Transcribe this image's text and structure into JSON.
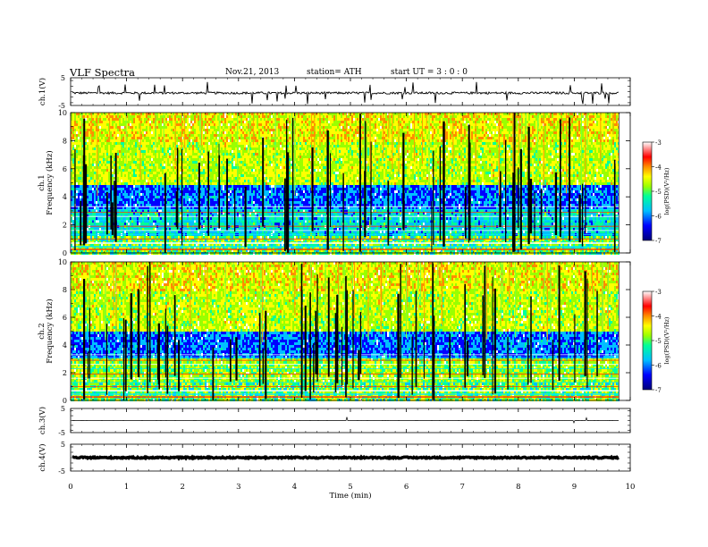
{
  "header": {
    "title": "VLF Spectra",
    "date": "Nov.21, 2013",
    "station": "station= ATH",
    "start": "start UT = 3 : 0 : 0"
  },
  "chart_data": [
    {
      "type": "line",
      "panel": "ch1-waveform",
      "ylabel": "ch.1(V)",
      "ylim": [
        -5,
        5
      ],
      "yticks": [
        "5",
        "-5"
      ],
      "xlim": [
        0,
        10
      ],
      "description_series": "broadband waveform, baseline about -0.5 V with spikes"
    },
    {
      "type": "heatmap",
      "panel": "ch1-spectrogram",
      "ylabel": "ch.1",
      "ylabel2": "Frequency (kHz)",
      "ylim": [
        0,
        10
      ],
      "yticks": [
        "0",
        "2",
        "4",
        "6",
        "8",
        "10"
      ],
      "xlim": [
        0,
        10
      ],
      "data_end_min": 9.8,
      "colorbar": {
        "label": "log(PSD)(V²/Hz)",
        "range": [
          -7,
          -3
        ],
        "ticks": [
          "-7",
          "-6",
          "-5",
          "-4",
          "-3"
        ]
      }
    },
    {
      "type": "heatmap",
      "panel": "ch2-spectrogram",
      "ylabel": "ch.2",
      "ylabel2": "Frequency (kHz)",
      "ylim": [
        0,
        10
      ],
      "yticks": [
        "0",
        "2",
        "4",
        "6",
        "8",
        "10"
      ],
      "xlim": [
        0,
        10
      ],
      "data_end_min": 9.8,
      "colorbar": {
        "label": "log(PSD)(V²/Hz)",
        "range": [
          -7,
          -3
        ],
        "ticks": [
          "-7",
          "-6",
          "-5",
          "-4",
          "-3"
        ]
      }
    },
    {
      "type": "line",
      "panel": "ch3-waveform",
      "ylabel": "ch.3(V)",
      "ylim": [
        -5,
        5
      ],
      "yticks": [
        "5",
        "-5"
      ],
      "xlim": [
        0,
        10
      ]
    },
    {
      "type": "line",
      "panel": "ch4-waveform",
      "ylabel": "ch.4(V)",
      "ylim": [
        -5,
        5
      ],
      "yticks": [
        "5",
        "-5"
      ],
      "xlim": [
        0,
        10
      ],
      "xlabel": "Time (min)",
      "xticks": [
        "0",
        "1",
        "2",
        "3",
        "4",
        "5",
        "6",
        "7",
        "8",
        "9",
        "10"
      ]
    }
  ],
  "colors": {
    "colormap": [
      "#00007a",
      "#0000ff",
      "#00bfff",
      "#00ff9a",
      "#9aff00",
      "#ffff00",
      "#ff8c00",
      "#ff0000",
      "#ffffff"
    ]
  }
}
